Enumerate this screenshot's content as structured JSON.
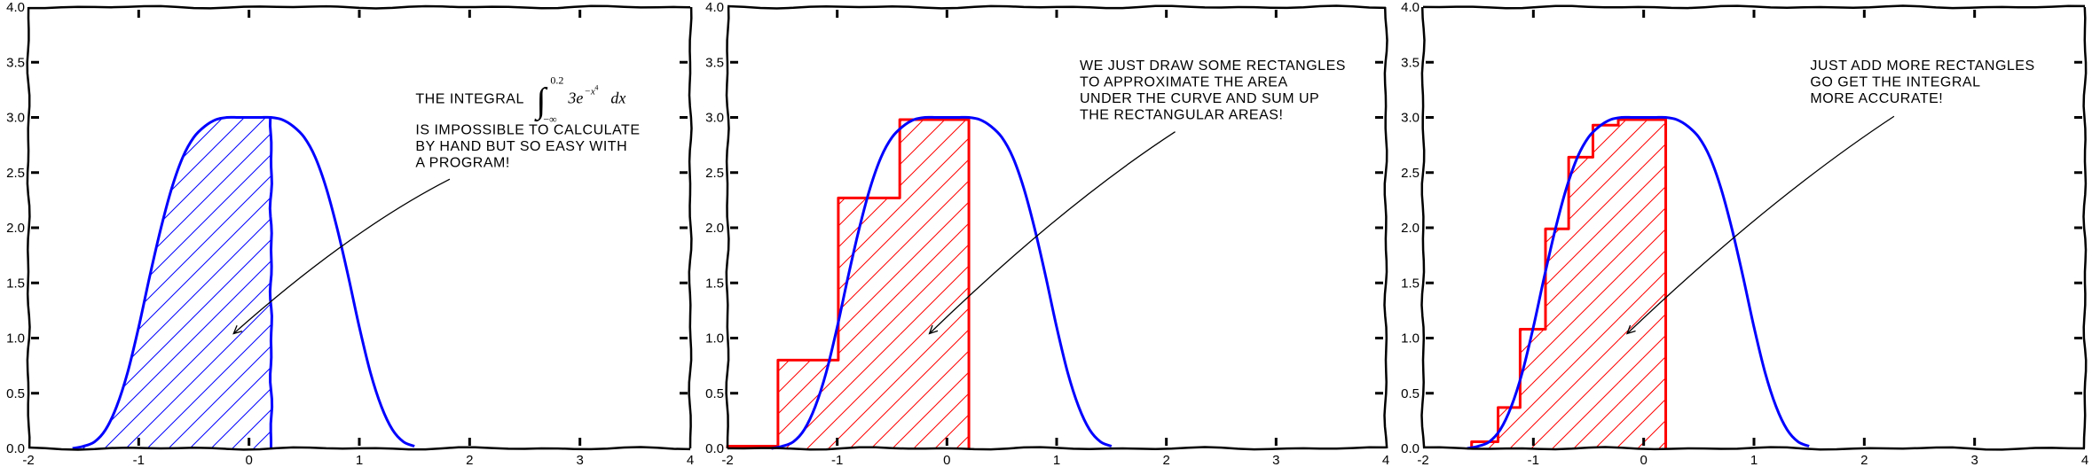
{
  "chart_data": [
    {
      "type": "line",
      "xlim": [
        -2,
        4
      ],
      "ylim": [
        0,
        4
      ],
      "xticks": [
        "-2",
        "-1",
        "0",
        "1",
        "2",
        "3",
        "4"
      ],
      "yticks": [
        "0.0",
        "0.5",
        "1.0",
        "1.5",
        "2.0",
        "2.5",
        "3.0",
        "3.5",
        "4.0"
      ],
      "grid": false,
      "curve": {
        "color": "#0000ff",
        "x": [
          -1.6,
          -1.5,
          -1.4,
          -1.3,
          -1.2,
          -1.1,
          -1.0,
          -0.9,
          -0.8,
          -0.7,
          -0.6,
          -0.5,
          -0.4,
          -0.3,
          -0.2,
          -0.1,
          0.0,
          0.1,
          0.2,
          0.3,
          0.4,
          0.5,
          0.6,
          0.7,
          0.8,
          0.9,
          1.0,
          1.1,
          1.2,
          1.3,
          1.4,
          1.5
        ],
        "y": [
          0.0,
          0.02,
          0.06,
          0.17,
          0.38,
          0.69,
          1.1,
          1.56,
          1.99,
          2.36,
          2.64,
          2.82,
          2.92,
          2.98,
          3.0,
          3.0,
          3.0,
          3.0,
          3.0,
          2.98,
          2.92,
          2.82,
          2.64,
          2.36,
          1.99,
          1.56,
          1.1,
          0.69,
          0.38,
          0.17,
          0.06,
          0.02
        ]
      },
      "shaded_region": {
        "x_max": 0.2,
        "color": "#0000ff",
        "hatch": "/"
      },
      "annotation": {
        "lines": [
          "THE INTEGRAL",
          "IS IMPOSSIBLE TO CALCULATE",
          "BY HAND BUT SO EASY WITH",
          "A PROGRAM!"
        ],
        "integral": {
          "upper": "0.2",
          "lower": "−∞",
          "integrand": "3e",
          "exponent": "−x",
          "power": "4",
          "differential": "dx"
        },
        "text_xy": [
          1.51,
          3.13
        ],
        "tail_xy": [
          1.82,
          2.44
        ],
        "arrow_xy": [
          -0.14,
          1.04
        ]
      }
    },
    {
      "type": "line",
      "xlim": [
        -2,
        4
      ],
      "ylim": [
        0,
        4
      ],
      "xticks": [
        "-2",
        "-1",
        "0",
        "1",
        "2",
        "3",
        "4"
      ],
      "yticks": [
        "0.0",
        "0.5",
        "1.0",
        "1.5",
        "2.0",
        "2.5",
        "3.0",
        "3.5",
        "4.0"
      ],
      "grid": false,
      "curve": {
        "color": "#0000ff",
        "x": [
          -1.6,
          -1.5,
          -1.4,
          -1.3,
          -1.2,
          -1.1,
          -1.0,
          -0.9,
          -0.8,
          -0.7,
          -0.6,
          -0.5,
          -0.4,
          -0.3,
          -0.2,
          -0.1,
          0.0,
          0.1,
          0.2,
          0.3,
          0.4,
          0.5,
          0.6,
          0.7,
          0.8,
          0.9,
          1.0,
          1.1,
          1.2,
          1.3,
          1.4,
          1.5
        ],
        "y": [
          0.0,
          0.02,
          0.06,
          0.17,
          0.38,
          0.69,
          1.1,
          1.56,
          1.99,
          2.36,
          2.64,
          2.82,
          2.92,
          2.98,
          3.0,
          3.0,
          3.0,
          3.0,
          3.0,
          2.98,
          2.92,
          2.82,
          2.64,
          2.36,
          1.99,
          1.56,
          1.1,
          0.69,
          0.38,
          0.17,
          0.06,
          0.02
        ]
      },
      "rectangles": {
        "color": "#ff0000",
        "hatch": "/",
        "bars": [
          {
            "x0": -2.0,
            "x1": -1.54,
            "height": 0.02
          },
          {
            "x0": -1.54,
            "x1": -0.99,
            "height": 0.8
          },
          {
            "x0": -0.99,
            "x1": -0.43,
            "height": 2.27
          },
          {
            "x0": -0.43,
            "x1": 0.2,
            "height": 2.98
          }
        ]
      },
      "annotation": {
        "lines": [
          "WE JUST DRAW SOME RECTANGLES",
          "TO APPROXIMATE THE AREA",
          "UNDER THE CURVE AND SUM UP",
          "THE RECTANGULAR AREAS!"
        ],
        "text_xy": [
          1.21,
          3.43
        ],
        "tail_xy": [
          2.08,
          2.87
        ],
        "arrow_xy": [
          -0.16,
          1.04
        ]
      }
    },
    {
      "type": "line",
      "xlim": [
        -2,
        4
      ],
      "ylim": [
        0,
        4
      ],
      "xticks": [
        "-2",
        "-1",
        "0",
        "1",
        "2",
        "3",
        "4"
      ],
      "yticks": [
        "0.0",
        "0.5",
        "1.0",
        "1.5",
        "2.0",
        "2.5",
        "3.0",
        "3.5",
        "4.0"
      ],
      "grid": false,
      "curve": {
        "color": "#0000ff",
        "x": [
          -1.6,
          -1.5,
          -1.4,
          -1.3,
          -1.2,
          -1.1,
          -1.0,
          -0.9,
          -0.8,
          -0.7,
          -0.6,
          -0.5,
          -0.4,
          -0.3,
          -0.2,
          -0.1,
          0.0,
          0.1,
          0.2,
          0.3,
          0.4,
          0.5,
          0.6,
          0.7,
          0.8,
          0.9,
          1.0,
          1.1,
          1.2,
          1.3,
          1.4,
          1.5
        ],
        "y": [
          0.0,
          0.02,
          0.06,
          0.17,
          0.38,
          0.69,
          1.1,
          1.56,
          1.99,
          2.36,
          2.64,
          2.82,
          2.92,
          2.98,
          3.0,
          3.0,
          3.0,
          3.0,
          3.0,
          2.98,
          2.92,
          2.82,
          2.64,
          2.36,
          1.99,
          1.56,
          1.1,
          0.69,
          0.38,
          0.17,
          0.06,
          0.02
        ]
      },
      "rectangles": {
        "color": "#ff0000",
        "hatch": "/",
        "bars": [
          {
            "x0": -1.56,
            "x1": -1.32,
            "height": 0.06
          },
          {
            "x0": -1.32,
            "x1": -1.12,
            "height": 0.37
          },
          {
            "x0": -1.12,
            "x1": -0.89,
            "height": 1.08
          },
          {
            "x0": -0.89,
            "x1": -0.68,
            "height": 1.99
          },
          {
            "x0": -0.68,
            "x1": -0.46,
            "height": 2.64
          },
          {
            "x0": -0.46,
            "x1": -0.23,
            "height": 2.93
          },
          {
            "x0": -0.23,
            "x1": -0.01,
            "height": 2.98
          },
          {
            "x0": -0.01,
            "x1": 0.2,
            "height": 2.98
          }
        ]
      },
      "annotation": {
        "lines": [
          "JUST ADD MORE RECTANGLES",
          "GO GET THE INTEGRAL",
          "MORE ACCURATE!"
        ],
        "text_xy": [
          1.51,
          3.43
        ],
        "tail_xy": [
          2.27,
          3.01
        ],
        "arrow_xy": [
          -0.15,
          1.04
        ]
      }
    }
  ]
}
